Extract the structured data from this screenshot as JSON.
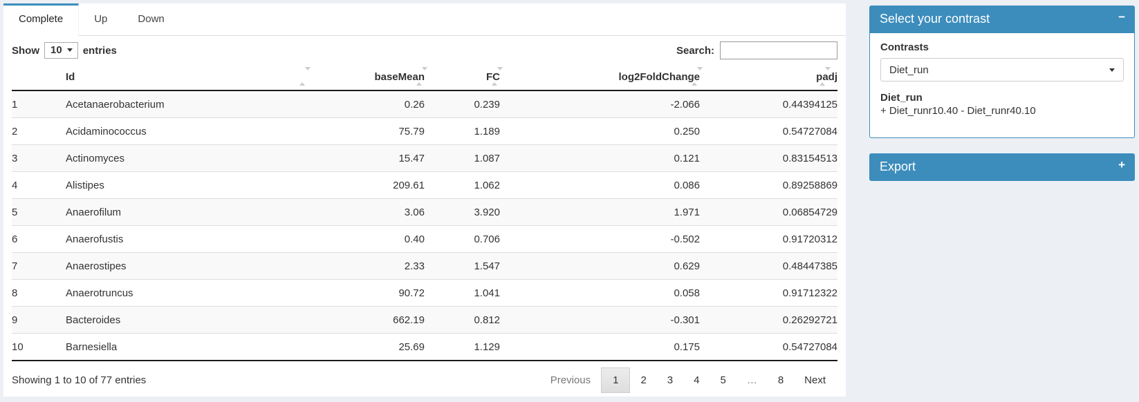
{
  "colors": {
    "accent": "#3c8dbc",
    "page_bg": "#ecf0f5",
    "stripe": "#f9f9f9"
  },
  "tabs": [
    {
      "label": "Complete",
      "active": true
    },
    {
      "label": "Up",
      "active": false
    },
    {
      "label": "Down",
      "active": false
    }
  ],
  "table_controls": {
    "show_label": "Show",
    "page_length": "10",
    "entries_label": "entries",
    "search_label": "Search:",
    "search_value": ""
  },
  "table": {
    "columns": [
      {
        "label": "",
        "sortable": false
      },
      {
        "label": "Id",
        "sortable": true
      },
      {
        "label": "baseMean",
        "sortable": true
      },
      {
        "label": "FC",
        "sortable": true
      },
      {
        "label": "log2FoldChange",
        "sortable": true
      },
      {
        "label": "padj",
        "sortable": true
      }
    ],
    "rows": [
      [
        "1",
        "Acetanaerobacterium",
        "0.26",
        "0.239",
        "-2.066",
        "0.44394125"
      ],
      [
        "2",
        "Acidaminococcus",
        "75.79",
        "1.189",
        "0.250",
        "0.54727084"
      ],
      [
        "3",
        "Actinomyces",
        "15.47",
        "1.087",
        "0.121",
        "0.83154513"
      ],
      [
        "4",
        "Alistipes",
        "209.61",
        "1.062",
        "0.086",
        "0.89258869"
      ],
      [
        "5",
        "Anaerofilum",
        "3.06",
        "3.920",
        "1.971",
        "0.06854729"
      ],
      [
        "6",
        "Anaerofustis",
        "0.40",
        "0.706",
        "-0.502",
        "0.91720312"
      ],
      [
        "7",
        "Anaerostipes",
        "2.33",
        "1.547",
        "0.629",
        "0.48447385"
      ],
      [
        "8",
        "Anaerotruncus",
        "90.72",
        "1.041",
        "0.058",
        "0.91712322"
      ],
      [
        "9",
        "Bacteroides",
        "662.19",
        "0.812",
        "-0.301",
        "0.26292721"
      ],
      [
        "10",
        "Barnesiella",
        "25.69",
        "1.129",
        "0.175",
        "0.54727084"
      ]
    ]
  },
  "footer": {
    "info": "Showing 1 to 10 of 77 entries",
    "pages": [
      {
        "label": "Previous",
        "state": "disabled"
      },
      {
        "label": "1",
        "state": "active"
      },
      {
        "label": "2",
        "state": "normal"
      },
      {
        "label": "3",
        "state": "normal"
      },
      {
        "label": "4",
        "state": "normal"
      },
      {
        "label": "5",
        "state": "normal"
      },
      {
        "label": "…",
        "state": "disabled"
      },
      {
        "label": "8",
        "state": "normal"
      },
      {
        "label": "Next",
        "state": "normal"
      }
    ]
  },
  "sidebar": {
    "contrast_panel": {
      "title": "Select your contrast",
      "collapse_icon": "−",
      "contrasts_label": "Contrasts",
      "selected_contrast": "Diet_run",
      "contrast_name": "Diet_run",
      "contrast_formula": "+ Diet_runr10.40 - Diet_runr40.10"
    },
    "export_panel": {
      "title": "Export",
      "expand_icon": "+"
    }
  }
}
